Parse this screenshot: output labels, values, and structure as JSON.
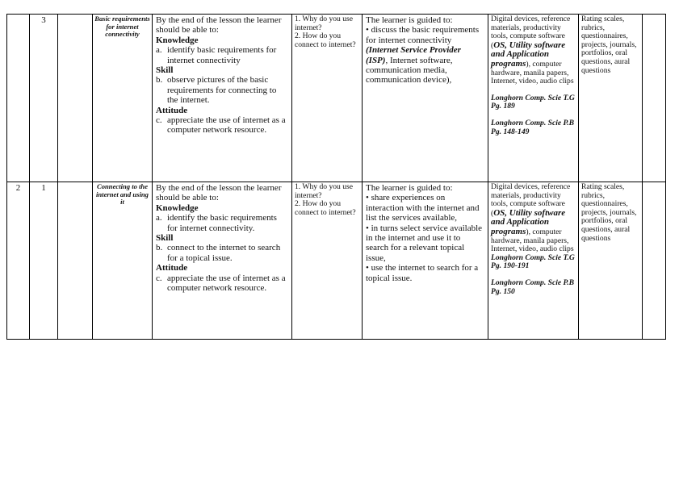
{
  "rows": [
    {
      "week": "",
      "lesson": "3",
      "strand": "",
      "topic": "Basic requirements for internet connectivity",
      "outcomes": {
        "intro": "By the end of the lesson the learner should be able to:",
        "knowledge_label": "Knowledge",
        "knowledge": {
          "marker": "a.",
          "text": "identify basic requirements for internet connectivity"
        },
        "skill_label": "Skill",
        "skill": {
          "marker": "b.",
          "text": "observe pictures of the basic requirements for connecting to the internet."
        },
        "attitude_label": "Attitude",
        "attitude": {
          "marker": "c.",
          "text": "appreciate the use of internet as a computer network resource."
        }
      },
      "key_inquiry": [
        "1. Why do you use internet?",
        "2. How do you connect to internet?"
      ],
      "experiences": {
        "intro": "The learner is guided to:",
        "b1": "• discuss the basic requirements for internet connectivity ",
        "b1_bold": "(Internet Service Provider (ISP)",
        "b1_rest": ", Internet software, communication media, communication device),"
      },
      "resources": {
        "pre": "Digital devices, reference materials, productivity tools, compute software (",
        "bold": "OS, Utility software and Application programs",
        "post": "), computer hardware, manila papers, Internet, video, audio clips",
        "ref1": "Longhorn Comp. Scie T.G Pg. 189",
        "ref2": "Longhorn Comp. Scie P.B Pg. 148-149"
      },
      "assessment": "Rating scales, rubrics, questionnaires, projects, journals, portfolios, oral questions, aural questions",
      "remarks": ""
    },
    {
      "week": "2",
      "lesson": "1",
      "strand": "",
      "topic": "Connecting to the internet and using it",
      "outcomes": {
        "intro": "By the end of the lesson the learner should be able to:",
        "knowledge_label": "Knowledge",
        "knowledge": {
          "marker": "a.",
          "text": "identify the basic requirements for internet connectivity."
        },
        "skill_label": "Skill",
        "skill": {
          "marker": "b.",
          "text": "connect to the internet to search for a topical issue."
        },
        "attitude_label": "Attitude",
        "attitude": {
          "marker": "c.",
          "text": "appreciate the use of internet as a computer network resource."
        }
      },
      "key_inquiry": [
        "1. Why do you use internet?",
        "2. How do you connect to internet?"
      ],
      "experiences": {
        "intro": "The learner is guided to:",
        "bullets": [
          "• share experiences on interaction with the internet and list the services available,",
          "• in turns select service available in the internet and use it to search for a relevant topical issue,",
          "• use the internet to search for a topical issue."
        ]
      },
      "resources": {
        "pre": "Digital devices, reference materials, productivity tools, compute software (",
        "bold": "OS, Utility software and Application programs",
        "post": "), computer hardware, manila papers, Internet, video, audio clips",
        "ref1": "Longhorn Comp. Scie T.G Pg. 190-191",
        "ref2": "Longhorn Comp. Scie P.B Pg. 150"
      },
      "assessment": "Rating scales, rubrics, questionnaires, projects, journals, portfolios, oral questions, aural questions",
      "remarks": ""
    }
  ]
}
